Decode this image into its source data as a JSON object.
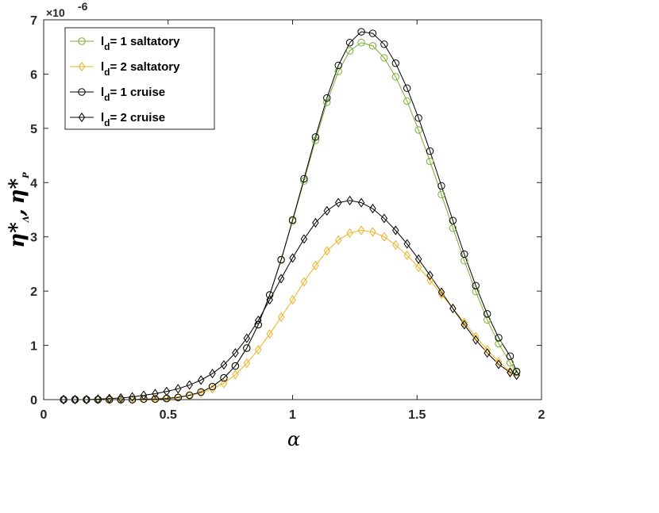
{
  "chart_data": {
    "type": "line",
    "xlabel": "α",
    "ylabel": "η*Λ, η*P",
    "ylabel_parts": {
      "eta": "η",
      "star": "*",
      "sub_a": "Λ",
      "sep": ",",
      "sub_p": "P"
    },
    "y_multiplier": "×10",
    "y_exponent": "-6",
    "xlim": [
      0,
      2
    ],
    "ylim": [
      0,
      7
    ],
    "xticks": [
      "0",
      "0.5",
      "1",
      "1.5",
      "2"
    ],
    "yticks": [
      "0",
      "1",
      "2",
      "3",
      "4",
      "5",
      "6",
      "7"
    ],
    "grid": false,
    "legend_position": "top-left",
    "legend": [
      {
        "prefix": "l",
        "sub": "d",
        "text": "= 1 saltatory"
      },
      {
        "prefix": "l",
        "sub": "d",
        "text": "= 2 saltatory"
      },
      {
        "prefix": "l",
        "sub": "d",
        "text": "= 1 cruise"
      },
      {
        "prefix": "l",
        "sub": "d",
        "text": "= 2 cruise"
      }
    ],
    "x": [
      0.08,
      0.126,
      0.172,
      0.218,
      0.264,
      0.31,
      0.356,
      0.402,
      0.448,
      0.494,
      0.54,
      0.586,
      0.632,
      0.678,
      0.724,
      0.77,
      0.816,
      0.862,
      0.908,
      0.954,
      1.0,
      1.046,
      1.092,
      1.138,
      1.184,
      1.23,
      1.276,
      1.322,
      1.368,
      1.414,
      1.46,
      1.506,
      1.552,
      1.598,
      1.644,
      1.69,
      1.736,
      1.782,
      1.828,
      1.874,
      1.9
    ],
    "series": [
      {
        "color": "#77ac30",
        "marker": "circle",
        "values": [
          0.0,
          0.0,
          0.0,
          0.0,
          0.0,
          0.0,
          0.0,
          0.01,
          0.01,
          0.02,
          0.04,
          0.08,
          0.14,
          0.24,
          0.4,
          0.62,
          0.95,
          1.38,
          1.93,
          2.57,
          3.29,
          4.03,
          4.78,
          5.48,
          6.05,
          6.43,
          6.58,
          6.52,
          6.3,
          5.95,
          5.5,
          4.97,
          4.39,
          3.78,
          3.16,
          2.56,
          1.99,
          1.47,
          1.03,
          0.68,
          0.5
        ]
      },
      {
        "color": "#edb120",
        "marker": "diamond",
        "values": [
          0.0,
          0.0,
          0.0,
          0.0,
          0.0,
          0.0,
          0.0,
          0.01,
          0.02,
          0.03,
          0.05,
          0.08,
          0.12,
          0.2,
          0.3,
          0.46,
          0.67,
          0.92,
          1.21,
          1.52,
          1.84,
          2.17,
          2.47,
          2.74,
          2.94,
          3.07,
          3.12,
          3.09,
          3.0,
          2.85,
          2.66,
          2.44,
          2.2,
          1.94,
          1.68,
          1.42,
          1.16,
          0.92,
          0.7,
          0.52,
          0.45
        ]
      },
      {
        "color": "#000000",
        "marker": "circle",
        "values": [
          0.0,
          0.0,
          0.0,
          0.0,
          0.0,
          0.0,
          0.0,
          0.01,
          0.01,
          0.02,
          0.04,
          0.08,
          0.14,
          0.24,
          0.4,
          0.62,
          0.95,
          1.38,
          1.93,
          2.58,
          3.31,
          4.07,
          4.84,
          5.56,
          6.16,
          6.58,
          6.78,
          6.75,
          6.55,
          6.2,
          5.74,
          5.19,
          4.58,
          3.94,
          3.3,
          2.68,
          2.1,
          1.58,
          1.14,
          0.8,
          0.52
        ]
      },
      {
        "color": "#000000",
        "marker": "diamond",
        "values": [
          0.0,
          0.0,
          0.0,
          0.01,
          0.02,
          0.03,
          0.05,
          0.08,
          0.11,
          0.15,
          0.2,
          0.27,
          0.36,
          0.48,
          0.64,
          0.86,
          1.13,
          1.46,
          1.84,
          2.23,
          2.61,
          2.96,
          3.26,
          3.48,
          3.63,
          3.67,
          3.63,
          3.52,
          3.34,
          3.12,
          2.87,
          2.59,
          2.29,
          1.98,
          1.68,
          1.38,
          1.1,
          0.86,
          0.65,
          0.5,
          0.45
        ]
      }
    ]
  }
}
